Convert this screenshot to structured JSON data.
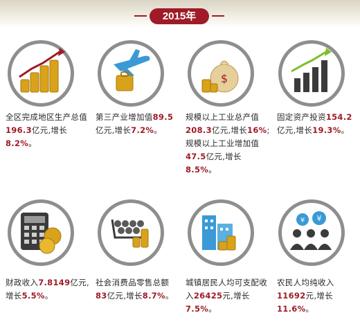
{
  "header": {
    "year": "2015年"
  },
  "cards": [
    {
      "pre": "全区完成地区生产总值",
      "value": "196.3",
      "unit": "亿元,增长",
      "rate": "8.2%",
      "end": "。"
    },
    {
      "pre": "第三产业增加值",
      "value": "89.5",
      "unit": "亿元,增长",
      "rate": "7.2%",
      "end": "。"
    },
    {
      "pre": "规模以上工业总产值",
      "value": "208.3",
      "unit": "亿元,增长",
      "rate": "16%",
      "mid": ";规模以上工业增加值",
      "value2": "47.5",
      "unit2": "亿元,增长",
      "rate2": "8.5%",
      "end": "。"
    },
    {
      "pre": "固定资产投资",
      "value": "154.2",
      "unit": "亿元,增长",
      "rate": "19.3%",
      "end": "。"
    },
    {
      "pre": "财政收入",
      "value": "7.8149",
      "unit": "亿元,增长",
      "rate": "5.5%",
      "end": "。"
    },
    {
      "pre": "社会消费品零售总额",
      "value": "83",
      "unit": "亿元,增长",
      "rate": "8.7%",
      "end": "。"
    },
    {
      "pre": "城镇居民人均可支配收入",
      "value": "26425",
      "unit": "元,增长",
      "rate": "7.5%",
      "end": "。"
    },
    {
      "pre": "农民人均纯收入",
      "value": "11692",
      "unit": "元,增长",
      "rate": "11.6%",
      "end": "。"
    }
  ],
  "icons": [
    "coins-growth-icon",
    "airplane-luggage-icon",
    "money-bag-icon",
    "bar-growth-icon",
    "calculator-coins-icon",
    "shopping-cart-icon",
    "city-building-icon",
    "people-money-icon"
  ],
  "colors": {
    "accent": "#9e1b27",
    "ring": "#8e8e8e",
    "gold": "#d9a21b"
  }
}
